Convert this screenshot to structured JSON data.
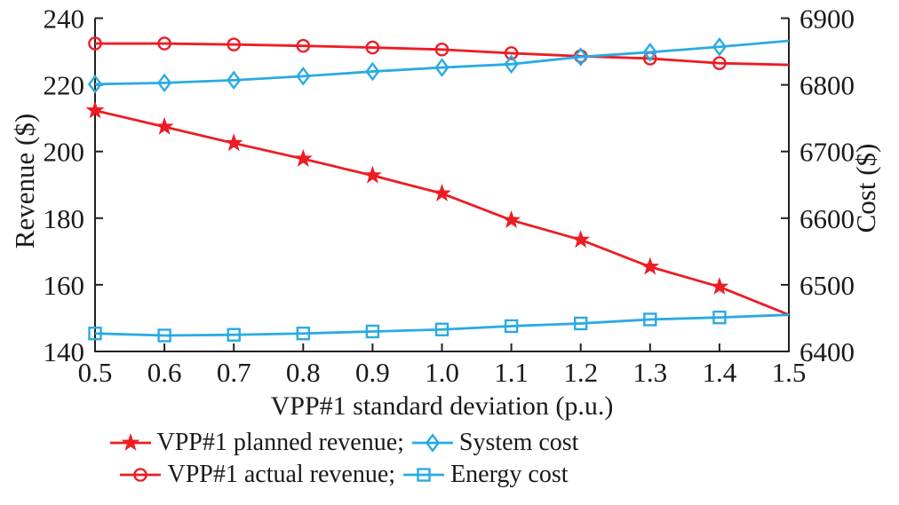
{
  "chart_data": {
    "type": "line",
    "title": "",
    "xlabel": "VPP#1 standard deviation (p.u.)",
    "x": [
      0.5,
      0.6,
      0.7,
      0.8,
      0.9,
      1.0,
      1.1,
      1.2,
      1.3,
      1.4,
      1.5
    ],
    "x_tick_labels": [
      "0.5",
      "0.6",
      "0.7",
      "0.8",
      "0.9",
      "1.0",
      "1.1",
      "1.2",
      "1.3",
      "1.4",
      "1.5"
    ],
    "xlim": [
      0.5,
      1.5
    ],
    "y_left": {
      "label": "Revenue ($)",
      "min": 140,
      "max": 240,
      "ticks": [
        140,
        160,
        180,
        200,
        220,
        240
      ]
    },
    "y_right": {
      "label": "Cost ($)",
      "min": 6400,
      "max": 6900,
      "ticks": [
        6400,
        6500,
        6600,
        6700,
        6800,
        6900
      ]
    },
    "grid": false,
    "marker_on_last_point": false,
    "series": [
      {
        "name": "VPP#1 planned revenue",
        "axis": "left",
        "color": "#ed1c24",
        "marker": "star",
        "marker_fill": "filled",
        "values": [
          212.3,
          207.4,
          202.5,
          197.8,
          192.8,
          187.4,
          179.4,
          173.5,
          165.4,
          159.4,
          151.0
        ]
      },
      {
        "name": "VPP#1 actual revenue",
        "axis": "left",
        "color": "#ed1c24",
        "marker": "circle",
        "marker_fill": "open",
        "values": [
          232.4,
          232.4,
          232.1,
          231.7,
          231.2,
          230.6,
          229.5,
          228.6,
          227.9,
          226.5,
          226.0
        ]
      },
      {
        "name": "System cost",
        "axis": "right",
        "color": "#29abe2",
        "marker": "diamond",
        "marker_fill": "open",
        "values": [
          6801,
          6803,
          6807,
          6813,
          6820,
          6826,
          6831,
          6842,
          6849,
          6857,
          6866
        ]
      },
      {
        "name": "Energy cost",
        "axis": "right",
        "color": "#29abe2",
        "marker": "square",
        "marker_fill": "open",
        "values": [
          6427,
          6424,
          6425,
          6427,
          6430,
          6433,
          6438,
          6442,
          6448,
          6451,
          6455
        ]
      }
    ],
    "legend": {
      "position": "below",
      "rows": [
        [
          {
            "series": 0,
            "label": "VPP#1 planned revenue;"
          },
          {
            "series": 2,
            "label": "System cost"
          }
        ],
        [
          {
            "series": 1,
            "label": "VPP#1 actual revenue;"
          },
          {
            "series": 3,
            "label": "Energy cost"
          }
        ]
      ]
    },
    "axis_color": "#231f20",
    "text_color": "#1a1a1a"
  }
}
